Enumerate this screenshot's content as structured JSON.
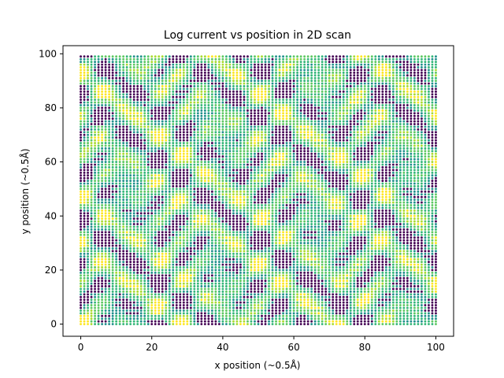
{
  "chart_data": {
    "type": "scatter",
    "title": "Log current vs position in 2D scan",
    "xlabel": "x position (~0.5Å)",
    "ylabel": "y position (~0.5Å)",
    "xlim": [
      -5,
      105
    ],
    "ylim": [
      -4.5,
      103
    ],
    "xticks": [
      0,
      20,
      40,
      60,
      80,
      100
    ],
    "yticks": [
      0,
      20,
      40,
      60,
      80,
      100
    ],
    "grid": false,
    "colormap": "viridis",
    "point_colors": [
      "#440154",
      "#21918c",
      "#35b779",
      "#5ec962",
      "#aadc32",
      "#fde725"
    ],
    "grid_spacing": 1,
    "x_range": [
      0,
      100
    ],
    "y_range": [
      0,
      99
    ],
    "description": "Dense 2D raster scan of points on a 1-unit grid colored by log current; dark purple spots form a lattice of low-current regions among teal/green/yellow high-current areas."
  }
}
